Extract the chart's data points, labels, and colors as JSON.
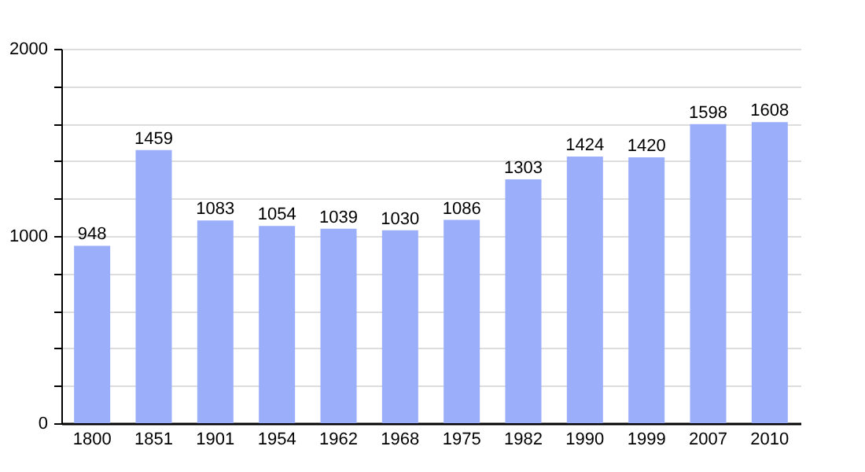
{
  "chart_data": {
    "type": "bar",
    "categories": [
      "1800",
      "1851",
      "1901",
      "1954",
      "1962",
      "1968",
      "1975",
      "1982",
      "1990",
      "1999",
      "2007",
      "2010"
    ],
    "values": [
      948,
      1459,
      1083,
      1054,
      1039,
      1030,
      1086,
      1303,
      1424,
      1420,
      1598,
      1608
    ],
    "color": "#9aaefa",
    "ylim": [
      0,
      2000
    ],
    "yticks": [
      0,
      {
        "value": 200,
        "label": null
      },
      {
        "value": 400,
        "label": null
      },
      {
        "value": 600,
        "label": null
      },
      {
        "value": 800,
        "label": null
      },
      1000,
      {
        "value": 1200,
        "label": null
      },
      {
        "value": 1400,
        "label": null
      },
      {
        "value": 1600,
        "label": null
      },
      {
        "value": 1800,
        "label": null
      },
      2000
    ],
    "grid": "y",
    "data_labels": true
  }
}
